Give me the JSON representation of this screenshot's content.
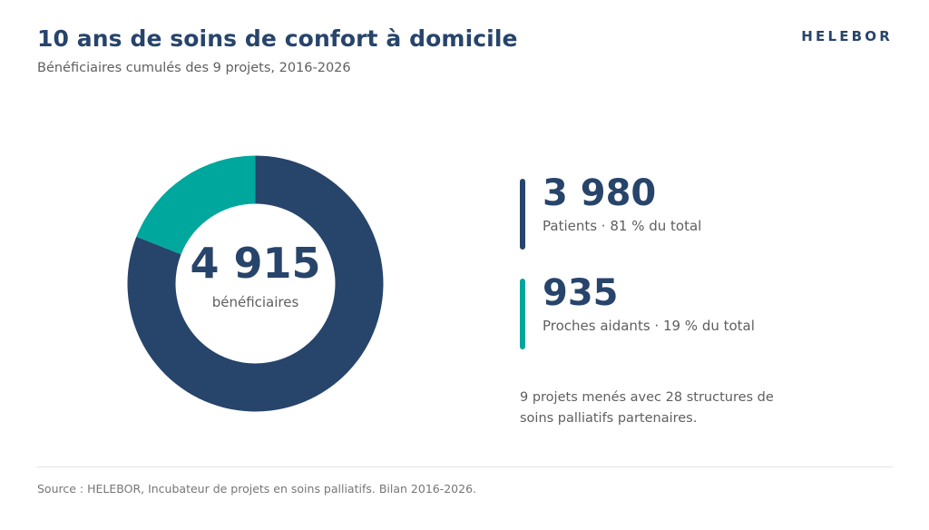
{
  "header": {
    "title": "10 ans de soins de confort à domicile",
    "subtitle": "Bénéficiaires cumulés des 9 projets, 2016-2026",
    "brand": "HELEBOR"
  },
  "colors": {
    "primary": "#27446b",
    "accent": "#00a79d",
    "text_muted": "#5f5f5f"
  },
  "chart_data": {
    "type": "pie",
    "variant": "donut",
    "total": 4915,
    "total_display": "4 915",
    "total_label": "bénéficiaires",
    "slices": [
      {
        "name": "Patients",
        "value": 3980,
        "value_display": "3 980",
        "share_label": "Patients · 81 % du total",
        "color": "#27446b"
      },
      {
        "name": "Proches aidants",
        "value": 935,
        "value_display": "935",
        "share_label": "Proches aidants · 19 % du total",
        "color": "#00a79d"
      }
    ]
  },
  "note": "9 projets menés avec 28 structures de soins palliatifs partenaires.",
  "footer": {
    "source": "Source : HELEBOR, Incubateur de projets en soins palliatifs. Bilan 2016-2026."
  }
}
